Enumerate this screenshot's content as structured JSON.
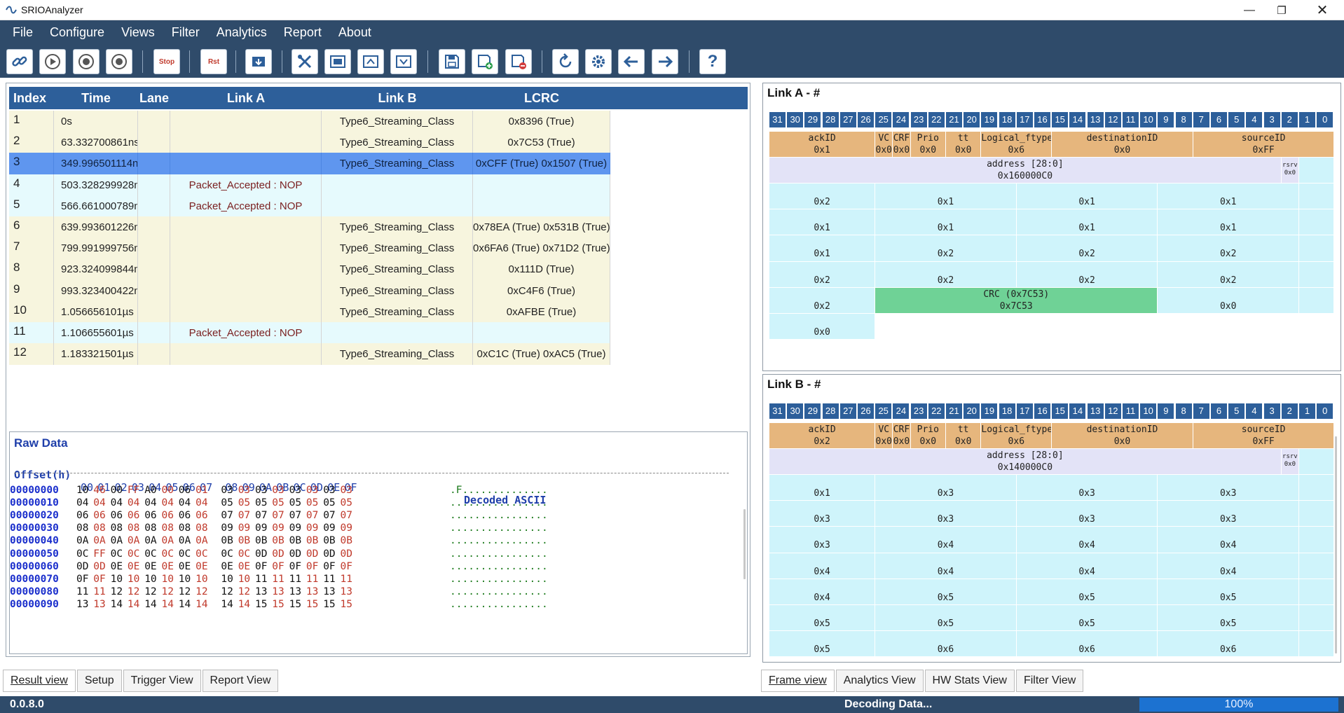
{
  "window": {
    "title": "SRIOAnalyzer",
    "controls": [
      "minimize",
      "maximize",
      "close"
    ]
  },
  "menu": [
    "File",
    "Configure",
    "Views",
    "Filter",
    "Analytics",
    "Report",
    "About"
  ],
  "toolbar": {
    "icons": [
      "link-icon",
      "play-icon",
      "record-icon",
      "record-stop-icon",
      "stop-button",
      "reset-button",
      "load-icon",
      "tools-icon",
      "window-icon",
      "upload-icon",
      "download-icon",
      "save-icon",
      "save-add-icon",
      "save-remove-icon",
      "refresh-icon",
      "settings-icon",
      "arrow-left-icon",
      "arrow-right-icon",
      "help-icon"
    ],
    "stop_label": "Stop",
    "rst_label": "Rst",
    "help_label": "?"
  },
  "colors": {
    "menubar": "#2f4b6a",
    "table_header": "#2d5f9a",
    "row_yellow": "#f7f5de",
    "row_cyan": "#e6fafd",
    "row_selected": "#5f96ef",
    "header_field": "#e6b67d",
    "data_field": "#cff4fb",
    "crc_field": "#6fd296",
    "progress": "#1c72d1"
  },
  "result_table": {
    "columns": [
      "Index",
      "Time",
      "Lane",
      "Link A",
      "Link B",
      "LCRC"
    ],
    "rows": [
      {
        "index": "1",
        "time": "0s",
        "lane": "",
        "link_a": "",
        "link_b": "Type6_Streaming_Class",
        "lcrc": "0x8396 (True)",
        "style": "yellow"
      },
      {
        "index": "2",
        "time": "63.332700861ns",
        "lane": "",
        "link_a": "",
        "link_b": "Type6_Streaming_Class",
        "lcrc": "0x7C53 (True)",
        "style": "yellow"
      },
      {
        "index": "3",
        "time": "349.996501114ns",
        "lane": "",
        "link_a": "",
        "link_b": "Type6_Streaming_Class",
        "lcrc": "0xCFF (True) 0x1507 (True)",
        "style": "selected"
      },
      {
        "index": "4",
        "time": "503.328299928ns",
        "lane": "",
        "link_a": "Packet_Accepted : NOP",
        "link_b": "",
        "lcrc": "",
        "style": "cyan"
      },
      {
        "index": "5",
        "time": "566.661000789ns",
        "lane": "",
        "link_a": "Packet_Accepted : NOP",
        "link_b": "",
        "lcrc": "",
        "style": "cyan"
      },
      {
        "index": "6",
        "time": "639.993601226ns",
        "lane": "",
        "link_a": "",
        "link_b": "Type6_Streaming_Class",
        "lcrc": "0x78EA (True) 0x531B (True)",
        "style": "yellow"
      },
      {
        "index": "7",
        "time": "799.991999756ns",
        "lane": "",
        "link_a": "",
        "link_b": "Type6_Streaming_Class",
        "lcrc": "0x6FA6 (True) 0x71D2 (True)",
        "style": "yellow"
      },
      {
        "index": "8",
        "time": "923.324099844ns",
        "lane": "",
        "link_a": "",
        "link_b": "Type6_Streaming_Class",
        "lcrc": "0x111D (True)",
        "style": "yellow"
      },
      {
        "index": "9",
        "time": "993.323400422ns",
        "lane": "",
        "link_a": "",
        "link_b": "Type6_Streaming_Class",
        "lcrc": "0xC4F6 (True)",
        "style": "yellow"
      },
      {
        "index": "10",
        "time": "1.056656101µs",
        "lane": "",
        "link_a": "",
        "link_b": "Type6_Streaming_Class",
        "lcrc": "0xAFBE (True)",
        "style": "yellow"
      },
      {
        "index": "11",
        "time": "1.106655601µs",
        "lane": "",
        "link_a": "Packet_Accepted : NOP",
        "link_b": "",
        "lcrc": "",
        "style": "cyan"
      },
      {
        "index": "12",
        "time": "1.183321501µs",
        "lane": "",
        "link_a": "",
        "link_b": "Type6_Streaming_Class",
        "lcrc": "0xC1C (True) 0xAC5 (True)",
        "style": "yellow"
      }
    ]
  },
  "raw_data": {
    "title": "Raw Data",
    "offset_label": "Offset(h)",
    "col_headers": [
      "00",
      "01",
      "02",
      "03",
      "04",
      "05",
      "06",
      "07",
      "08",
      "09",
      "0A",
      "0B",
      "0C",
      "0D",
      "0E",
      "0F"
    ],
    "ascii_label": "Decoded ASCII",
    "rows": [
      {
        "offset": "00000000",
        "bytes": [
          "10",
          "46",
          "00",
          "FF",
          "A0",
          "00",
          "06",
          "01",
          "03",
          "03",
          "03",
          "03",
          "03",
          "03",
          "03",
          "03"
        ],
        "ascii": ".F.............."
      },
      {
        "offset": "00000010",
        "bytes": [
          "04",
          "04",
          "04",
          "04",
          "04",
          "04",
          "04",
          "04",
          "05",
          "05",
          "05",
          "05",
          "05",
          "05",
          "05",
          "05"
        ],
        "ascii": "................"
      },
      {
        "offset": "00000020",
        "bytes": [
          "06",
          "06",
          "06",
          "06",
          "06",
          "06",
          "06",
          "06",
          "07",
          "07",
          "07",
          "07",
          "07",
          "07",
          "07",
          "07"
        ],
        "ascii": "................"
      },
      {
        "offset": "00000030",
        "bytes": [
          "08",
          "08",
          "08",
          "08",
          "08",
          "08",
          "08",
          "08",
          "09",
          "09",
          "09",
          "09",
          "09",
          "09",
          "09",
          "09"
        ],
        "ascii": "................"
      },
      {
        "offset": "00000040",
        "bytes": [
          "0A",
          "0A",
          "0A",
          "0A",
          "0A",
          "0A",
          "0A",
          "0A",
          "0B",
          "0B",
          "0B",
          "0B",
          "0B",
          "0B",
          "0B",
          "0B"
        ],
        "ascii": "................"
      },
      {
        "offset": "00000050",
        "bytes": [
          "0C",
          "FF",
          "0C",
          "0C",
          "0C",
          "0C",
          "0C",
          "0C",
          "0C",
          "0C",
          "0D",
          "0D",
          "0D",
          "0D",
          "0D",
          "0D"
        ],
        "ascii": "................"
      },
      {
        "offset": "00000060",
        "bytes": [
          "0D",
          "0D",
          "0E",
          "0E",
          "0E",
          "0E",
          "0E",
          "0E",
          "0E",
          "0E",
          "0F",
          "0F",
          "0F",
          "0F",
          "0F",
          "0F"
        ],
        "ascii": "................"
      },
      {
        "offset": "00000070",
        "bytes": [
          "0F",
          "0F",
          "10",
          "10",
          "10",
          "10",
          "10",
          "10",
          "10",
          "10",
          "11",
          "11",
          "11",
          "11",
          "11",
          "11"
        ],
        "ascii": "................"
      },
      {
        "offset": "00000080",
        "bytes": [
          "11",
          "11",
          "12",
          "12",
          "12",
          "12",
          "12",
          "12",
          "12",
          "12",
          "13",
          "13",
          "13",
          "13",
          "13",
          "13"
        ],
        "ascii": "................"
      },
      {
        "offset": "00000090",
        "bytes": [
          "13",
          "13",
          "14",
          "14",
          "14",
          "14",
          "14",
          "14",
          "14",
          "14",
          "15",
          "15",
          "15",
          "15",
          "15",
          "15"
        ],
        "ascii": "................"
      }
    ]
  },
  "left_tabs": [
    "Result view",
    "Setup",
    "Trigger View",
    "Report View"
  ],
  "right_tabs": [
    "Frame view",
    "Analytics View",
    "HW Stats View",
    "Filter View"
  ],
  "frame_view": {
    "bit_numbers": [
      "31",
      "30",
      "29",
      "28",
      "27",
      "26",
      "25",
      "24",
      "23",
      "22",
      "21",
      "20",
      "19",
      "18",
      "17",
      "16",
      "15",
      "14",
      "13",
      "12",
      "11",
      "10",
      "9",
      "8",
      "7",
      "6",
      "5",
      "4",
      "3",
      "2",
      "1",
      "0"
    ],
    "link_a": {
      "title": "Link A - #",
      "fields": [
        {
          "name": "ackID",
          "value": "0x1"
        },
        {
          "name": "VC",
          "value": "0x0"
        },
        {
          "name": "CRF",
          "value": "0x0"
        },
        {
          "name": "Prio",
          "value": "0x0"
        },
        {
          "name": "tt",
          "value": "0x0"
        },
        {
          "name": "Logical_ftype",
          "value": "0x6"
        },
        {
          "name": "destinationID",
          "value": "0x0"
        },
        {
          "name": "sourceID",
          "value": "0xFF"
        }
      ],
      "address": {
        "name": "address [28:0]",
        "value": "0x160000C0"
      },
      "rsrv": {
        "name": "rsrv",
        "value": "0x0"
      },
      "data_rows": [
        [
          "0x2",
          "0x1",
          "0x1",
          "0x1"
        ],
        [
          "0x1",
          "0x1",
          "0x1",
          "0x1"
        ],
        [
          "0x1",
          "0x2",
          "0x2",
          "0x2"
        ],
        [
          "0x2",
          "0x2",
          "0x2",
          "0x2"
        ]
      ],
      "crc_row": {
        "first": "0x2",
        "crc_name": "CRC (0x7C53)",
        "crc_value": "0x7C53",
        "last": "0x0"
      },
      "last_row": "0x0"
    },
    "link_b": {
      "title": "Link B - #",
      "fields": [
        {
          "name": "ackID",
          "value": "0x2"
        },
        {
          "name": "VC",
          "value": "0x0"
        },
        {
          "name": "CRF",
          "value": "0x0"
        },
        {
          "name": "Prio",
          "value": "0x0"
        },
        {
          "name": "tt",
          "value": "0x0"
        },
        {
          "name": "Logical_ftype",
          "value": "0x6"
        },
        {
          "name": "destinationID",
          "value": "0x0"
        },
        {
          "name": "sourceID",
          "value": "0xFF"
        }
      ],
      "address": {
        "name": "address [28:0]",
        "value": "0x140000C0"
      },
      "rsrv": {
        "name": "rsrv",
        "value": "0x0"
      },
      "data_rows": [
        [
          "0x1",
          "0x3",
          "0x3",
          "0x3"
        ],
        [
          "0x3",
          "0x3",
          "0x3",
          "0x3"
        ],
        [
          "0x3",
          "0x4",
          "0x4",
          "0x4"
        ],
        [
          "0x4",
          "0x4",
          "0x4",
          "0x4"
        ],
        [
          "0x4",
          "0x5",
          "0x5",
          "0x5"
        ],
        [
          "0x5",
          "0x5",
          "0x5",
          "0x5"
        ],
        [
          "0x5",
          "0x6",
          "0x6",
          "0x6"
        ]
      ]
    }
  },
  "status": {
    "version": "0.0.8.0",
    "message": "Decoding Data...",
    "progress_label": "100%",
    "progress": 1.0
  }
}
